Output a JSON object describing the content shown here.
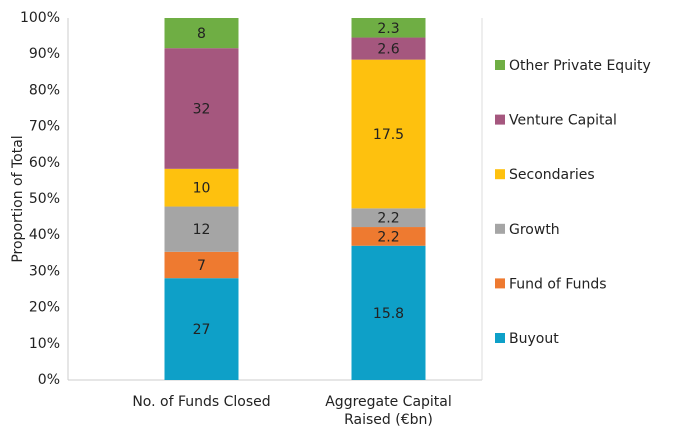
{
  "chart_data": {
    "type": "bar",
    "stacking": "percent",
    "y_label": "Proportion of Total",
    "categories": [
      "No. of Funds Closed",
      "Aggregate Capital Raised (€bn)"
    ],
    "series": [
      {
        "name": "Buyout",
        "color": "#0ea0c8",
        "values": [
          27,
          15.8
        ]
      },
      {
        "name": "Fund of Funds",
        "color": "#ee7a30",
        "values": [
          7,
          2.2
        ]
      },
      {
        "name": "Growth",
        "color": "#a5a5a5",
        "values": [
          12,
          2.2
        ]
      },
      {
        "name": "Secondaries",
        "color": "#fec10e",
        "values": [
          10,
          17.5
        ]
      },
      {
        "name": "Venture Capital",
        "color": "#a5577e",
        "values": [
          32,
          2.6
        ]
      },
      {
        "name": "Other Private Equity",
        "color": "#6fae44",
        "values": [
          8,
          2.3
        ]
      }
    ],
    "ylim": [
      0,
      100
    ],
    "yticks": [
      {
        "value": 0,
        "label": "0%"
      },
      {
        "value": 10,
        "label": "10%"
      },
      {
        "value": 20,
        "label": "20%"
      },
      {
        "value": 30,
        "label": "30%"
      },
      {
        "value": 40,
        "label": "40%"
      },
      {
        "value": 50,
        "label": "50%"
      },
      {
        "value": 60,
        "label": "60%"
      },
      {
        "value": 70,
        "label": "70%"
      },
      {
        "value": 80,
        "label": "80%"
      },
      {
        "value": 90,
        "label": "90%"
      },
      {
        "value": 100,
        "label": "100%"
      }
    ],
    "grid": false,
    "legend": "right"
  }
}
